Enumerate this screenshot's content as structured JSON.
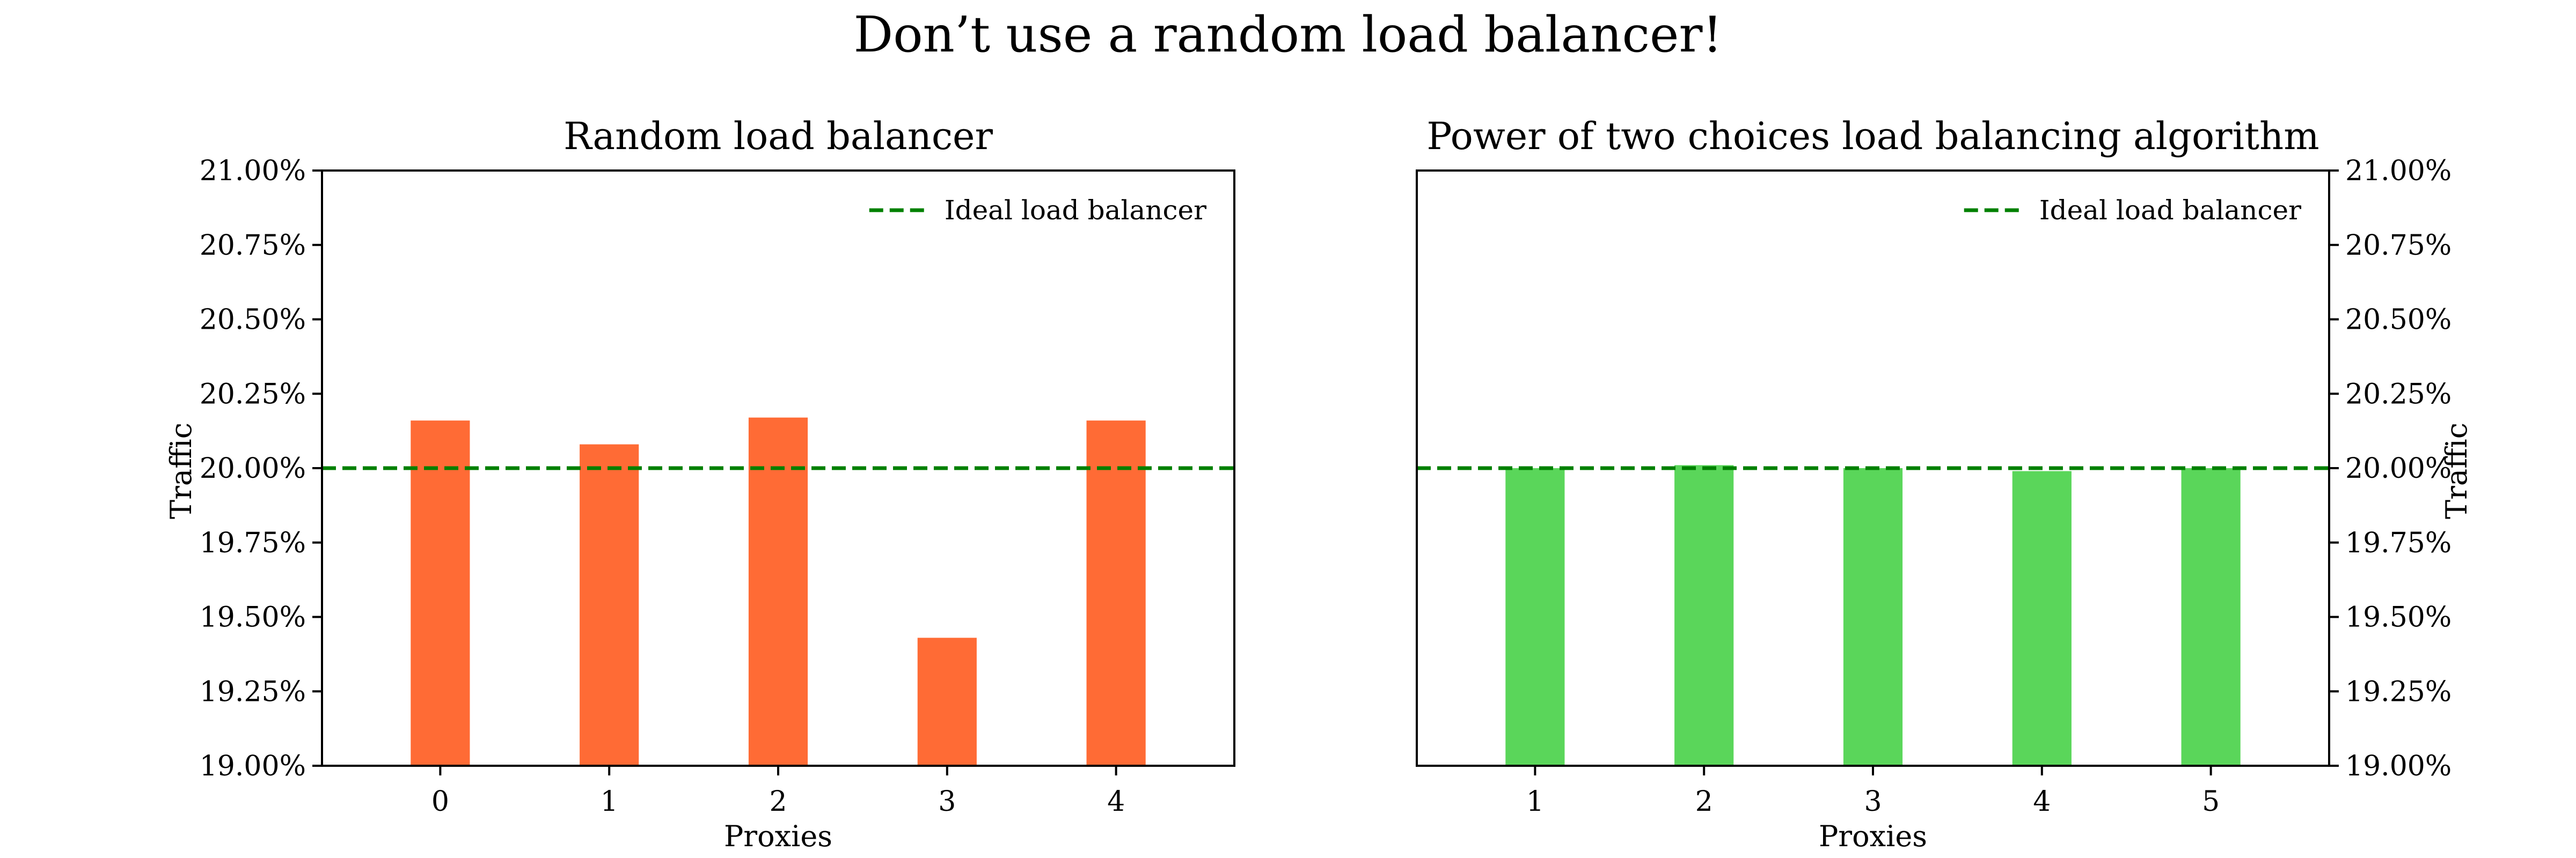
{
  "figure": {
    "title": "Don’t use a random load balancer!"
  },
  "colors": {
    "random_bars": "#ff6b35",
    "p2c_bars": "#5ad65a",
    "ideal_line": "#008000"
  },
  "chart_data": [
    {
      "type": "bar",
      "title": "Random load balancer",
      "xlabel": "Proxies",
      "ylabel": "Traffic",
      "y_axis_side": "left",
      "ylim": [
        19.0,
        21.0
      ],
      "y_ticks": [
        19.0,
        19.25,
        19.5,
        19.75,
        20.0,
        20.25,
        20.5,
        20.75,
        21.0
      ],
      "y_tick_labels": [
        "19.00%",
        "19.25%",
        "19.50%",
        "19.75%",
        "20.00%",
        "20.25%",
        "20.50%",
        "20.75%",
        "21.00%"
      ],
      "categories": [
        "0",
        "1",
        "2",
        "3",
        "4"
      ],
      "values": [
        20.16,
        20.08,
        20.17,
        19.43,
        20.16
      ],
      "reference_line": {
        "label": "Ideal load balancer",
        "value": 20.0,
        "style": "dashed"
      },
      "legend_position": "top-right",
      "grid": false
    },
    {
      "type": "bar",
      "title": "Power of two choices load balancing algorithm",
      "xlabel": "Proxies",
      "ylabel": "Traffic",
      "y_axis_side": "right",
      "ylim": [
        19.0,
        21.0
      ],
      "y_ticks": [
        19.0,
        19.25,
        19.5,
        19.75,
        20.0,
        20.25,
        20.5,
        20.75,
        21.0
      ],
      "y_tick_labels": [
        "19.00%",
        "19.25%",
        "19.50%",
        "19.75%",
        "20.00%",
        "20.25%",
        "20.50%",
        "20.75%",
        "21.00%"
      ],
      "categories": [
        "1",
        "2",
        "3",
        "4",
        "5"
      ],
      "values": [
        20.0,
        20.01,
        20.0,
        19.99,
        20.0
      ],
      "reference_line": {
        "label": "Ideal load balancer",
        "value": 20.0,
        "style": "dashed"
      },
      "legend_position": "top-right",
      "grid": false
    }
  ]
}
